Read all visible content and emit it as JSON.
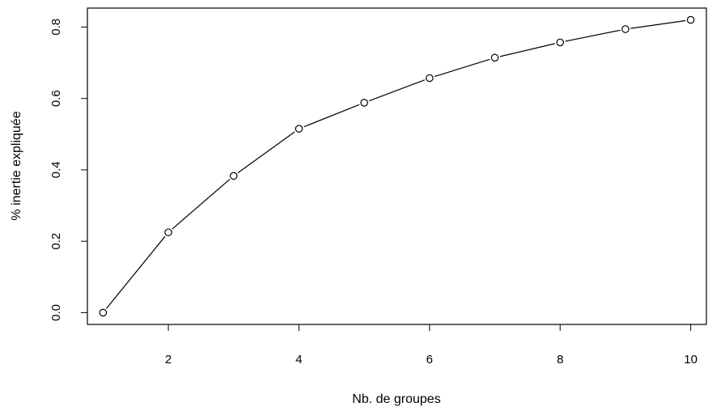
{
  "chart_data": {
    "type": "line",
    "title": "",
    "xlabel": "Nb. de groupes",
    "ylabel": "% inertie expliquée",
    "x": [
      1,
      2,
      3,
      4,
      5,
      6,
      7,
      8,
      9,
      10
    ],
    "series": [
      {
        "values": [
          0.0,
          0.225,
          0.383,
          0.515,
          0.588,
          0.657,
          0.714,
          0.757,
          0.794,
          0.82
        ]
      }
    ],
    "xlim": [
      0.76,
      10.24
    ],
    "ylim": [
      -0.033,
      0.853
    ],
    "xticks": [
      2,
      4,
      6,
      8,
      10
    ],
    "xtick_labels": [
      "2",
      "4",
      "6",
      "8",
      "10"
    ],
    "yticks": [
      0.0,
      0.2,
      0.4,
      0.6,
      0.8
    ],
    "ytick_labels": [
      "0.0",
      "0.2",
      "0.4",
      "0.6",
      "0.8"
    ],
    "marker": "open-circle",
    "grid": false,
    "legend": "none",
    "line_color": "#000000"
  }
}
